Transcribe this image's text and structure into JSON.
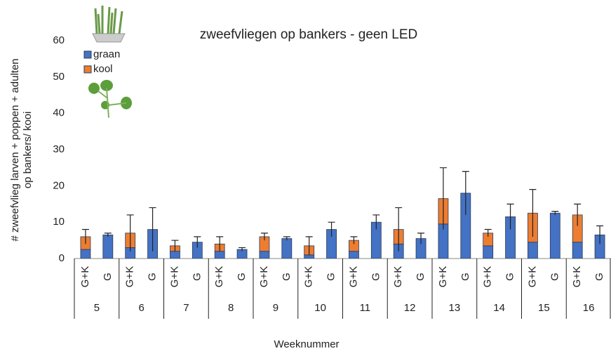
{
  "chart_data": {
    "type": "stacked-bar",
    "title": "zweefvliegen op bankers - geen LED",
    "ylabel": [
      "# zweefvlieg larven + poppen + adulten",
      "op bankers/ kooi"
    ],
    "xlabel": "Weeknummer",
    "groups": [
      "5",
      "6",
      "7",
      "8",
      "9",
      "10",
      "11",
      "12",
      "13",
      "14",
      "15",
      "16"
    ],
    "categories": [
      "G+K",
      "G",
      "G+K",
      "G",
      "G+K",
      "G",
      "G+K",
      "G",
      "G+K",
      "G",
      "G+K",
      "G",
      "G+K",
      "G",
      "G+K",
      "G",
      "G+K",
      "G",
      "G+K",
      "G",
      "G+K",
      "G",
      "G+K",
      "G"
    ],
    "series": [
      {
        "name": "graan",
        "color": "#4472c4",
        "values": [
          2.5,
          6.5,
          3,
          8,
          2,
          4.5,
          2,
          2.5,
          2,
          5.5,
          1,
          8,
          2,
          10,
          4,
          5.5,
          9.5,
          18,
          3.5,
          11.5,
          4.5,
          12.5,
          4.5,
          6.5
        ]
      },
      {
        "name": "kool",
        "color": "#ed7d31",
        "values": [
          3.5,
          null,
          4,
          null,
          1.5,
          null,
          2,
          null,
          4,
          null,
          2.5,
          null,
          3,
          null,
          4,
          null,
          7,
          null,
          3.5,
          null,
          8,
          null,
          7.5,
          null
        ]
      }
    ],
    "errors": [
      2,
      0.5,
      5,
      6,
      1.5,
      1.5,
      2,
      0.5,
      1,
      0.5,
      2.5,
      2,
      1,
      2,
      6,
      1.5,
      8.5,
      6,
      1,
      3.5,
      6.5,
      0.5,
      3,
      2.5
    ],
    "ylim": [
      0,
      60
    ],
    "yticks": [
      0,
      10,
      20,
      30,
      40,
      50,
      60
    ],
    "grid": false,
    "legend": "upper-left"
  }
}
